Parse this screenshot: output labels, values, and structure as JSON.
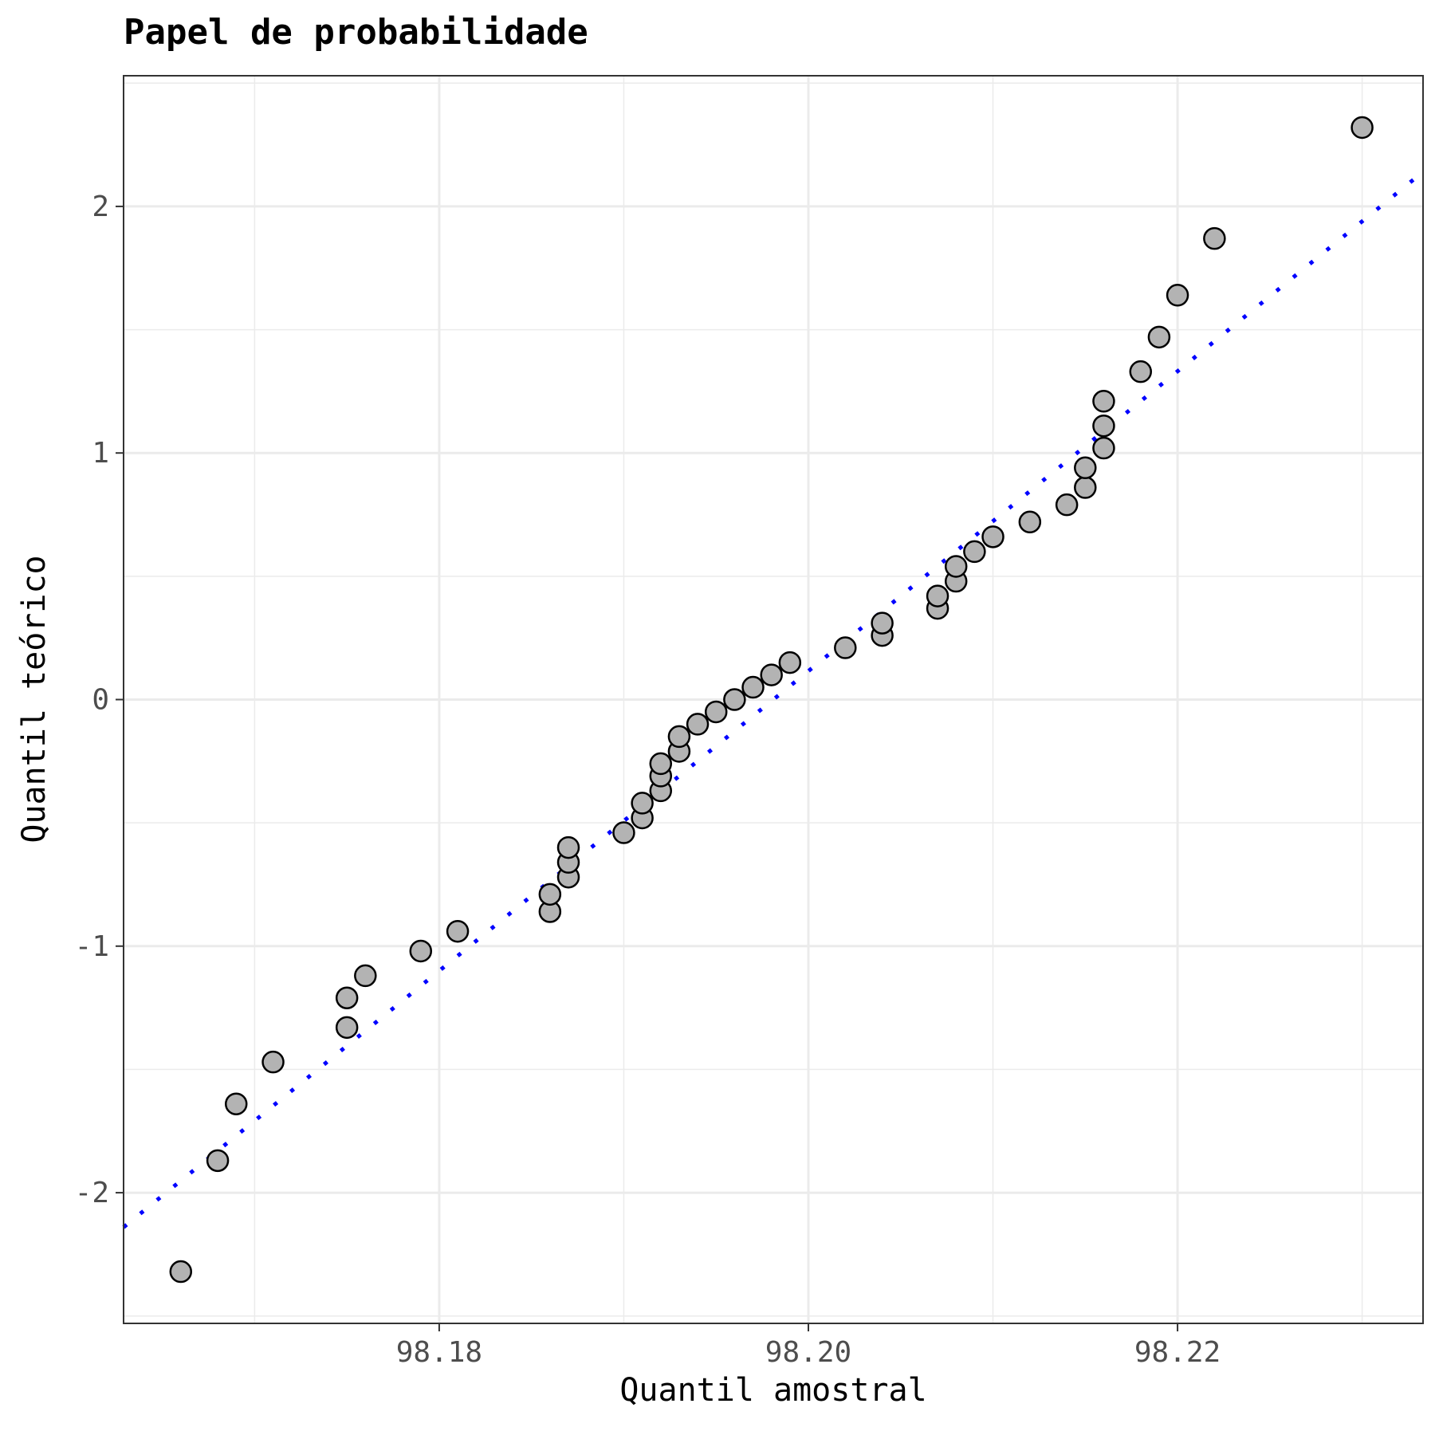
{
  "chart_data": {
    "type": "scatter",
    "title": "Papel de probabilidade",
    "xlabel": "Quantil amostral",
    "ylabel": "Quantil teórico",
    "xlim": [
      98.1629,
      98.2333
    ],
    "ylim": [
      -2.53,
      2.53
    ],
    "x_ticks": [
      98.18,
      98.2,
      98.22
    ],
    "x_tick_labels": [
      "98.18",
      "98.20",
      "98.22"
    ],
    "y_ticks": [
      -2,
      -1,
      0,
      1,
      2
    ],
    "y_tick_labels": [
      "-2",
      "-1",
      "0",
      "1",
      "2"
    ],
    "grid": true,
    "points": [
      {
        "x": 98.166,
        "y": -2.32
      },
      {
        "x": 98.168,
        "y": -1.87
      },
      {
        "x": 98.169,
        "y": -1.64
      },
      {
        "x": 98.171,
        "y": -1.47
      },
      {
        "x": 98.175,
        "y": -1.33
      },
      {
        "x": 98.175,
        "y": -1.21
      },
      {
        "x": 98.176,
        "y": -1.12
      },
      {
        "x": 98.179,
        "y": -1.02
      },
      {
        "x": 98.181,
        "y": -0.94
      },
      {
        "x": 98.186,
        "y": -0.86
      },
      {
        "x": 98.186,
        "y": -0.79
      },
      {
        "x": 98.187,
        "y": -0.72
      },
      {
        "x": 98.187,
        "y": -0.66
      },
      {
        "x": 98.187,
        "y": -0.6
      },
      {
        "x": 98.19,
        "y": -0.54
      },
      {
        "x": 98.191,
        "y": -0.48
      },
      {
        "x": 98.191,
        "y": -0.42
      },
      {
        "x": 98.192,
        "y": -0.37
      },
      {
        "x": 98.192,
        "y": -0.31
      },
      {
        "x": 98.192,
        "y": -0.26
      },
      {
        "x": 98.193,
        "y": -0.21
      },
      {
        "x": 98.193,
        "y": -0.15
      },
      {
        "x": 98.194,
        "y": -0.1
      },
      {
        "x": 98.195,
        "y": -0.05
      },
      {
        "x": 98.196,
        "y": 0.0
      },
      {
        "x": 98.197,
        "y": 0.05
      },
      {
        "x": 98.198,
        "y": 0.1
      },
      {
        "x": 98.199,
        "y": 0.15
      },
      {
        "x": 98.202,
        "y": 0.21
      },
      {
        "x": 98.204,
        "y": 0.26
      },
      {
        "x": 98.204,
        "y": 0.31
      },
      {
        "x": 98.207,
        "y": 0.37
      },
      {
        "x": 98.207,
        "y": 0.42
      },
      {
        "x": 98.208,
        "y": 0.48
      },
      {
        "x": 98.208,
        "y": 0.54
      },
      {
        "x": 98.209,
        "y": 0.6
      },
      {
        "x": 98.21,
        "y": 0.66
      },
      {
        "x": 98.212,
        "y": 0.72
      },
      {
        "x": 98.214,
        "y": 0.79
      },
      {
        "x": 98.215,
        "y": 0.86
      },
      {
        "x": 98.215,
        "y": 0.94
      },
      {
        "x": 98.216,
        "y": 1.02
      },
      {
        "x": 98.216,
        "y": 1.11
      },
      {
        "x": 98.216,
        "y": 1.21
      },
      {
        "x": 98.218,
        "y": 1.33
      },
      {
        "x": 98.219,
        "y": 1.47
      },
      {
        "x": 98.22,
        "y": 1.64
      },
      {
        "x": 98.222,
        "y": 1.87
      },
      {
        "x": 98.23,
        "y": 2.32
      }
    ],
    "reference_line": {
      "x": [
        98.1629,
        98.2333
      ],
      "y": [
        -2.14,
        2.14
      ],
      "style": "dotted",
      "color": "#0000ff"
    },
    "point_fill": "#b3b3b3",
    "point_stroke": "#000000"
  }
}
